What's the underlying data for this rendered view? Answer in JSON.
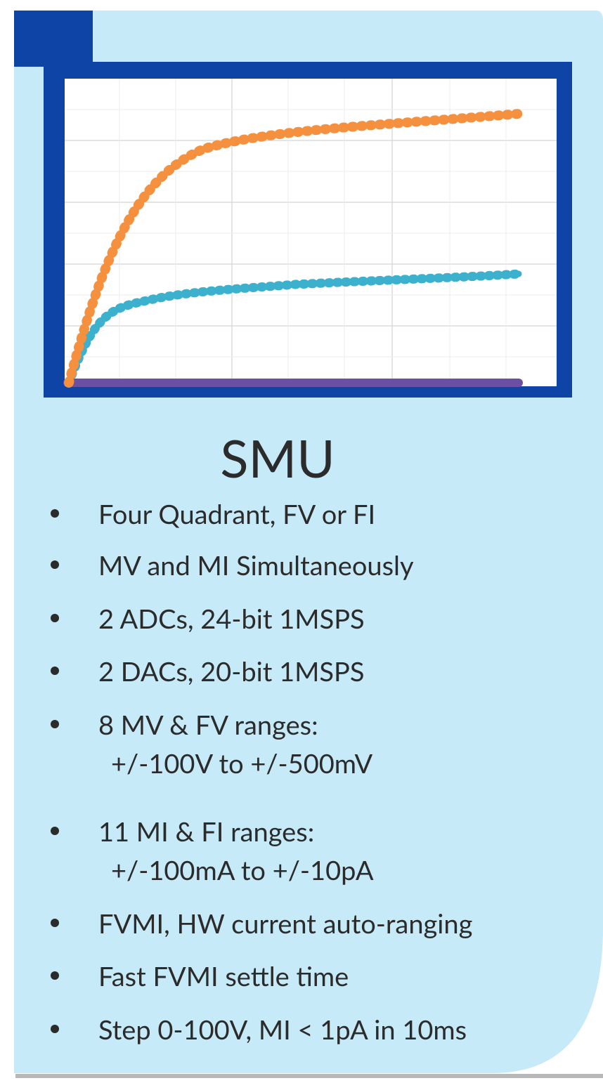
{
  "title": "SMU",
  "items": [
    {
      "text": "Four Quadrant, FV or FI"
    },
    {
      "text": "MV and MI Simultaneously"
    },
    {
      "text": "2 ADCs, 24-bit 1MSPS"
    },
    {
      "text": "2 DACs, 20-bit 1MSPS"
    },
    {
      "text": "8 MV & FV ranges:",
      "detail": "+/-100V to +/-500mV"
    },
    {
      "text": "11 MI & FI ranges:",
      "detail": "+/-100mA to +/-10pA"
    },
    {
      "text": "FVMI, HW current auto-ranging"
    },
    {
      "text": "Fast FVMI settle time"
    },
    {
      "text": "Step 0-100V, MI < 1pA in 10ms"
    }
  ]
}
